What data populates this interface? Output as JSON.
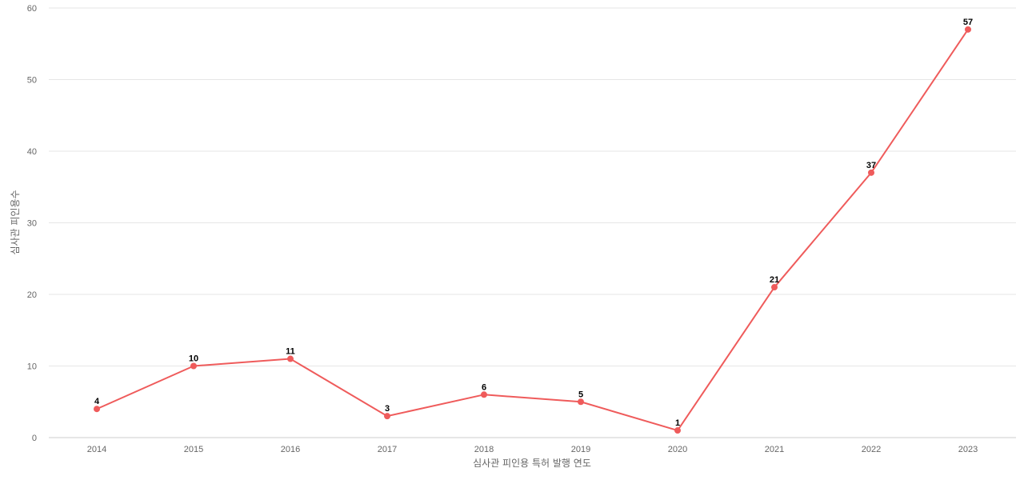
{
  "chart_data": {
    "type": "line",
    "title": "",
    "xlabel": "심사관 피인용 특허 발행 연도",
    "ylabel": "심사관 피인용수",
    "categories": [
      "2014",
      "2015",
      "2016",
      "2017",
      "2018",
      "2019",
      "2020",
      "2021",
      "2022",
      "2023"
    ],
    "series": [
      {
        "values": [
          4,
          10,
          11,
          3,
          6,
          5,
          1,
          21,
          37,
          57
        ],
        "color": "#ef5b5b"
      }
    ],
    "ylim": [
      0,
      60
    ],
    "yticks": [
      0,
      10,
      20,
      30,
      40,
      50,
      60
    ],
    "grid": true,
    "legend": "none",
    "data_labels": true
  }
}
